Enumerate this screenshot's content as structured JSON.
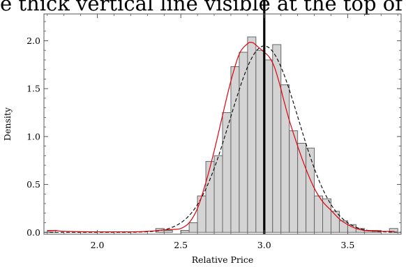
{
  "caption_fragment": "e thick vertical line visible at the top of the gr",
  "chart_data": {
    "type": "bar",
    "title": "",
    "xlabel": "Relative Price",
    "ylabel": "Density",
    "xlim": [
      1.68,
      3.82
    ],
    "ylim": [
      -0.02,
      2.28
    ],
    "x_ticks": [
      2.0,
      2.5,
      3.0,
      3.5
    ],
    "x_tick_labels": [
      "2.0",
      "2.5",
      "3.0",
      "3.5"
    ],
    "y_ticks": [
      0.0,
      0.5,
      1.0,
      1.5,
      2.0
    ],
    "y_tick_labels": [
      "0.0",
      "0.5",
      "1.0",
      "1.5",
      "2.0"
    ],
    "bin_width": 0.05,
    "histogram": [
      {
        "x0": 1.7,
        "x1": 1.75,
        "density": 0.02
      },
      {
        "x0": 2.35,
        "x1": 2.4,
        "density": 0.04
      },
      {
        "x0": 2.4,
        "x1": 2.45,
        "density": 0.02
      },
      {
        "x0": 2.5,
        "x1": 2.55,
        "density": 0.02
      },
      {
        "x0": 2.55,
        "x1": 2.6,
        "density": 0.1
      },
      {
        "x0": 2.6,
        "x1": 2.65,
        "density": 0.38
      },
      {
        "x0": 2.65,
        "x1": 2.7,
        "density": 0.74
      },
      {
        "x0": 2.7,
        "x1": 2.75,
        "density": 0.8
      },
      {
        "x0": 2.75,
        "x1": 2.8,
        "density": 1.25
      },
      {
        "x0": 2.8,
        "x1": 2.85,
        "density": 1.73
      },
      {
        "x0": 2.85,
        "x1": 2.9,
        "density": 1.88
      },
      {
        "x0": 2.9,
        "x1": 2.95,
        "density": 2.04
      },
      {
        "x0": 2.95,
        "x1": 3.0,
        "density": 1.9
      },
      {
        "x0": 3.0,
        "x1": 3.05,
        "density": 1.8
      },
      {
        "x0": 3.05,
        "x1": 3.1,
        "density": 1.96
      },
      {
        "x0": 3.1,
        "x1": 3.15,
        "density": 1.54
      },
      {
        "x0": 3.15,
        "x1": 3.2,
        "density": 1.06
      },
      {
        "x0": 3.2,
        "x1": 3.25,
        "density": 0.93
      },
      {
        "x0": 3.25,
        "x1": 3.3,
        "density": 0.88
      },
      {
        "x0": 3.3,
        "x1": 3.35,
        "density": 0.38
      },
      {
        "x0": 3.35,
        "x1": 3.4,
        "density": 0.35
      },
      {
        "x0": 3.4,
        "x1": 3.45,
        "density": 0.22
      },
      {
        "x0": 3.45,
        "x1": 3.5,
        "density": 0.12
      },
      {
        "x0": 3.5,
        "x1": 3.55,
        "density": 0.08
      },
      {
        "x0": 3.55,
        "x1": 3.6,
        "density": 0.04
      },
      {
        "x0": 3.6,
        "x1": 3.65,
        "density": 0.02
      },
      {
        "x0": 3.65,
        "x1": 3.7,
        "density": 0.02
      },
      {
        "x0": 3.75,
        "x1": 3.8,
        "density": 0.04
      }
    ],
    "reference_line": {
      "x": 3.0,
      "color": "#000000"
    },
    "normal_curve": {
      "mean": 3.0,
      "sd": 0.205,
      "color": "#000000",
      "dashed": true
    },
    "kernel_density": {
      "color": "#e0000a",
      "x": [
        1.7,
        1.75,
        1.8,
        2.0,
        2.2,
        2.3,
        2.4,
        2.45,
        2.5,
        2.55,
        2.6,
        2.65,
        2.7,
        2.75,
        2.8,
        2.85,
        2.9,
        2.93,
        2.96,
        3.0,
        3.03,
        3.06,
        3.09,
        3.12,
        3.15,
        3.2,
        3.25,
        3.3,
        3.35,
        3.4,
        3.45,
        3.5,
        3.55,
        3.6,
        3.7,
        3.78
      ],
      "y": [
        0.015,
        0.02,
        0.01,
        0.005,
        0.005,
        0.01,
        0.025,
        0.03,
        0.04,
        0.1,
        0.25,
        0.52,
        0.85,
        1.22,
        1.58,
        1.86,
        1.97,
        1.98,
        1.94,
        1.88,
        1.83,
        1.73,
        1.56,
        1.36,
        1.17,
        0.9,
        0.66,
        0.46,
        0.32,
        0.23,
        0.14,
        0.08,
        0.04,
        0.02,
        0.01,
        0.01
      ]
    },
    "bar_fill": "#d4d4d4",
    "bar_stroke": "#666666",
    "grid": false,
    "legend": "none"
  }
}
